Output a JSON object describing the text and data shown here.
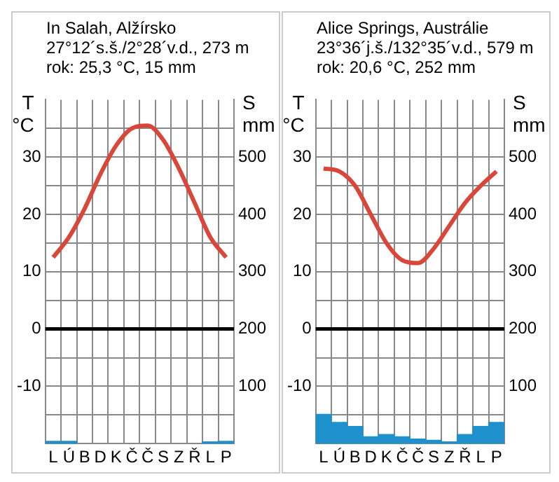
{
  "chart_data": [
    {
      "type": "line",
      "title": "In Salah, Alžírsko",
      "subtitle": "27°12´s.š./2°28´v.d., 273 m\nrok: 25,3 °C, 15 mm",
      "ylabel": "T °C",
      "y2label": "S mm",
      "categories": [
        "L",
        "Ú",
        "B",
        "D",
        "K",
        "Č",
        "Č",
        "S",
        "Z",
        "Ř",
        "L",
        "P"
      ],
      "series": [
        {
          "color": "#d9463a",
          "values": [
            12.5,
            16,
            21,
            27,
            32,
            35,
            35.5,
            33,
            28,
            22,
            16,
            12.5
          ]
        },
        {
          "type": "bar",
          "axis": "y2",
          "color": "#1e90cc",
          "values": [
            4,
            4,
            null,
            null,
            null,
            null,
            null,
            null,
            null,
            null,
            3,
            4
          ]
        }
      ],
      "ylim": [
        -20,
        40
      ],
      "yticks": [
        {
          "value": -15,
          "label": null
        },
        -10,
        {
          "value": -5,
          "label": null
        },
        0,
        {
          "value": 5,
          "label": null
        },
        10,
        {
          "value": 15,
          "label": null
        },
        20,
        {
          "value": 25,
          "label": null
        },
        30,
        {
          "value": 35,
          "label": null
        }
      ],
      "y2lim": [
        0,
        600
      ],
      "y2ticks": [
        100,
        200,
        300,
        400,
        500
      ],
      "grid": true,
      "ref_lines": [
        {
          "axis": "y",
          "value": 0,
          "color": "#000000"
        }
      ]
    },
    {
      "type": "line",
      "title": "Alice Springs, Austrálie",
      "subtitle": "23°36´j.š./132°35´v.d., 579 m\nrok: 20,6 °C, 252 mm",
      "ylabel": "T °C",
      "y2label": "S mm",
      "categories": [
        "L",
        "Ú",
        "B",
        "D",
        "K",
        "Č",
        "Č",
        "S",
        "Z",
        "Ř",
        "L",
        "P"
      ],
      "series": [
        {
          "color": "#d9463a",
          "values": [
            28,
            27.5,
            25,
            20,
            15,
            12,
            11.5,
            14,
            18,
            22,
            25,
            27.5
          ]
        },
        {
          "type": "bar",
          "axis": "y2",
          "color": "#1e90cc",
          "values": [
            51,
            37,
            30,
            12,
            16,
            12,
            8,
            6,
            3,
            16,
            30,
            37
          ]
        }
      ],
      "ylim": [
        -20,
        40
      ],
      "yticks": [
        {
          "value": -15,
          "label": null
        },
        -10,
        {
          "value": -5,
          "label": null
        },
        0,
        {
          "value": 5,
          "label": null
        },
        10,
        {
          "value": 15,
          "label": null
        },
        20,
        {
          "value": 25,
          "label": null
        },
        30,
        {
          "value": 35,
          "label": null
        }
      ],
      "y2lim": [
        0,
        600
      ],
      "y2ticks": [
        100,
        200,
        300,
        400,
        500
      ],
      "grid": true,
      "ref_lines": [
        {
          "axis": "y",
          "value": 0,
          "color": "#000000"
        }
      ]
    }
  ]
}
